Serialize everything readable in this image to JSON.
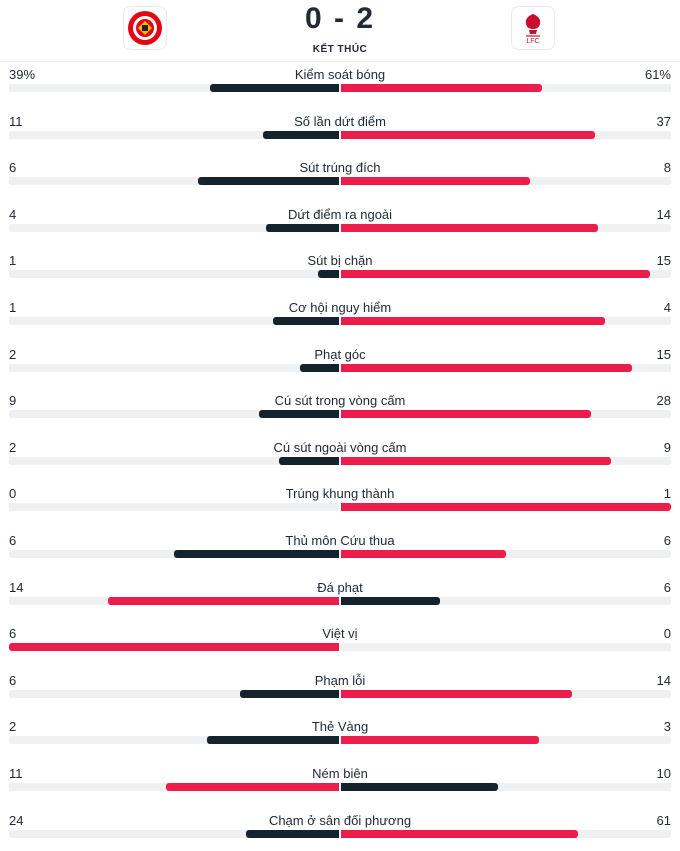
{
  "match": {
    "score": "0 - 2",
    "status": "KẾT THÚC",
    "home_logo": "brentford-crest",
    "away_logo": "liverpool-crest"
  },
  "colors": {
    "leader": "#ec1c4b",
    "trailer": "#15232e",
    "track": "#eef0f2"
  },
  "stats": [
    {
      "label": "Kiểm soát bóng",
      "home": "39%",
      "away": "61%",
      "home_share": 39,
      "away_share": 61
    },
    {
      "label": "Số lần dứt điểm",
      "home": "11",
      "away": "37",
      "home_share": 11,
      "away_share": 37
    },
    {
      "label": "Sút trúng đích",
      "home": "6",
      "away": "8",
      "home_share": 6,
      "away_share": 8
    },
    {
      "label": "Dứt điểm ra ngoài",
      "home": "4",
      "away": "14",
      "home_share": 4,
      "away_share": 14
    },
    {
      "label": "Sút bị chặn",
      "home": "1",
      "away": "15",
      "home_share": 1,
      "away_share": 15
    },
    {
      "label": "Cơ hội nguy hiểm",
      "home": "1",
      "away": "4",
      "home_share": 1,
      "away_share": 4
    },
    {
      "label": "Phạt góc",
      "home": "2",
      "away": "15",
      "home_share": 2,
      "away_share": 15
    },
    {
      "label": "Cú sút trong vòng cấm",
      "home": "9",
      "away": "28",
      "home_share": 9,
      "away_share": 28
    },
    {
      "label": "Cú sút ngoài vòng cấm",
      "home": "2",
      "away": "9",
      "home_share": 2,
      "away_share": 9
    },
    {
      "label": "Trúng khung thành",
      "home": "0",
      "away": "1",
      "home_share": 0,
      "away_share": 1
    },
    {
      "label": "Thủ môn Cứu thua",
      "home": "6",
      "away": "6",
      "home_share": 6,
      "away_share": 6
    },
    {
      "label": "Đá phạt",
      "home": "14",
      "away": "6",
      "home_share": 14,
      "away_share": 6
    },
    {
      "label": "Việt vị",
      "home": "6",
      "away": "0",
      "home_share": 6,
      "away_share": 0
    },
    {
      "label": "Phạm lỗi",
      "home": "6",
      "away": "14",
      "home_share": 6,
      "away_share": 14
    },
    {
      "label": "Thẻ Vàng",
      "home": "2",
      "away": "3",
      "home_share": 2,
      "away_share": 3
    },
    {
      "label": "Ném biên",
      "home": "11",
      "away": "10",
      "home_share": 11,
      "away_share": 10
    },
    {
      "label": "Chạm ở sân đối phương",
      "home": "24",
      "away": "61",
      "home_share": 24,
      "away_share": 61
    }
  ]
}
